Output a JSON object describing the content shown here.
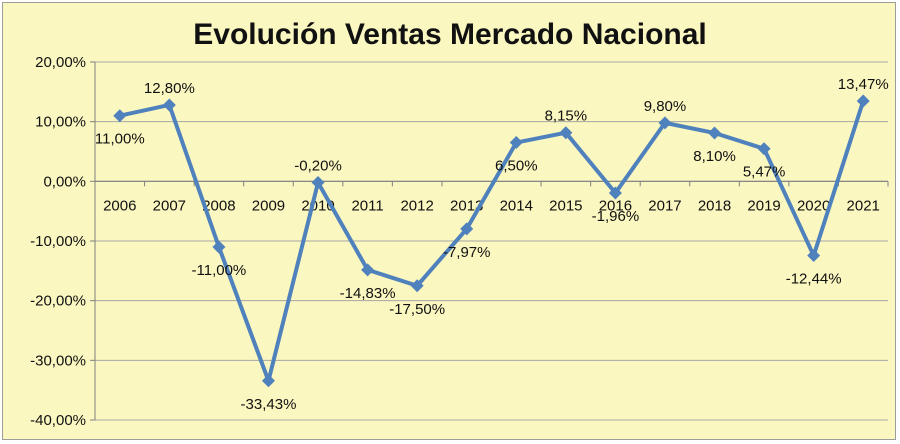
{
  "chart_data": {
    "type": "line",
    "title": "Evolución Ventas Mercado Nacional",
    "xlabel": "",
    "ylabel": "",
    "categories": [
      "2006",
      "2007",
      "2008",
      "2009",
      "2010",
      "2011",
      "2012",
      "2013",
      "2014",
      "2015",
      "2016",
      "2017",
      "2018",
      "2019",
      "2020",
      "2021"
    ],
    "values": [
      11.0,
      12.8,
      -11.0,
      -33.43,
      -0.2,
      -14.83,
      -17.5,
      -7.97,
      6.5,
      8.15,
      -1.96,
      9.8,
      8.1,
      5.47,
      -12.44,
      13.47
    ],
    "data_labels": [
      "11,00%",
      "12,80%",
      "-11,00%",
      "-33,43%",
      "-0,20%",
      "-14,83%",
      "-17,50%",
      "-7,97%",
      "6,50%",
      "8,15%",
      "-1,96%",
      "9,80%",
      "8,10%",
      "5,47%",
      "-12,44%",
      "13,47%"
    ],
    "ylim": [
      -40,
      20
    ],
    "yticks": [
      20,
      10,
      0,
      -10,
      -20,
      -30,
      -40
    ],
    "ytick_labels": [
      "20,00%",
      "10,00%",
      "0,00%",
      "-10,00%",
      "-20,00%",
      "-30,00%",
      "-40,00%"
    ],
    "grid": true,
    "legend": "none",
    "colors": {
      "line": "#4f81bd",
      "background": "#faf7c0",
      "grid": "#a6a6a6",
      "axis": "#808080"
    }
  }
}
